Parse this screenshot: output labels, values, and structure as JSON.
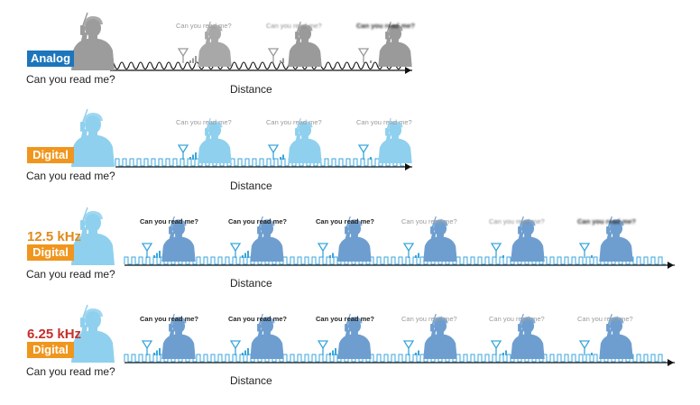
{
  "sender_text": "Can you read me?",
  "distance_label": "Distance",
  "bubble_text": "Can you read me?",
  "colors": {
    "analog_tag": "#1d75bb",
    "digital_tag": "#f0961e",
    "analog_figure": "#9c9c9c",
    "digital_figure": "#8fd0ee",
    "narrow_figure": "#6e9ecf",
    "freq_125": "#e08a1c",
    "freq_625": "#c4302b",
    "wave_digital": "#3aa6dc",
    "wave_analog": "#111111"
  },
  "panels": [
    {
      "id": "analog",
      "tag": "Analog",
      "freq": "",
      "wave": "analog",
      "receivers": [
        {
          "clarity": "clear",
          "signal_bars": 3
        },
        {
          "clarity": "faded",
          "signal_bars": 2
        },
        {
          "clarity": "garbled",
          "signal_bars": 1
        }
      ]
    },
    {
      "id": "digital",
      "tag": "Digital",
      "freq": "",
      "wave": "digital",
      "receivers": [
        {
          "clarity": "clear",
          "signal_bars": 3
        },
        {
          "clarity": "clear",
          "signal_bars": 2
        },
        {
          "clarity": "clear",
          "signal_bars": 1
        }
      ]
    },
    {
      "id": "digital-12-5",
      "tag": "Digital",
      "freq": "12.5 kHz",
      "wave": "digital",
      "receivers": [
        {
          "clarity": "bold",
          "signal_bars": 3
        },
        {
          "clarity": "bold",
          "signal_bars": 3
        },
        {
          "clarity": "bold",
          "signal_bars": 2
        },
        {
          "clarity": "clear",
          "signal_bars": 2
        },
        {
          "clarity": "faded",
          "signal_bars": 1
        },
        {
          "clarity": "garbled",
          "signal_bars": 1
        }
      ]
    },
    {
      "id": "digital-6-25",
      "tag": "Digital",
      "freq": "6.25 kHz",
      "wave": "digital",
      "receivers": [
        {
          "clarity": "bold",
          "signal_bars": 3
        },
        {
          "clarity": "bold",
          "signal_bars": 3
        },
        {
          "clarity": "bold",
          "signal_bars": 3
        },
        {
          "clarity": "clear",
          "signal_bars": 2
        },
        {
          "clarity": "clear",
          "signal_bars": 2
        },
        {
          "clarity": "clear",
          "signal_bars": 1
        }
      ]
    }
  ]
}
